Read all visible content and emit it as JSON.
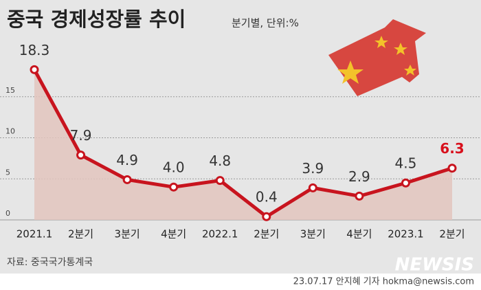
{
  "chart_data": {
    "type": "line",
    "title": "중국 경제성장률 추이",
    "subtitle": "분기별, 단위:%",
    "categories": [
      "2021.1",
      "2분기",
      "3분기",
      "4분기",
      "2022.1",
      "2분기",
      "3분기",
      "4분기",
      "2023.1",
      "2분기"
    ],
    "values": [
      18.3,
      7.9,
      4.9,
      4.0,
      4.8,
      0.4,
      3.9,
      2.9,
      4.5,
      6.3
    ],
    "value_labels": [
      "18.3",
      "7.9",
      "4.9",
      "4.0",
      "4.8",
      "0.4",
      "3.9",
      "2.9",
      "4.5",
      "6.3"
    ],
    "color": "#c8141e",
    "area_color": "#e2c4bd",
    "label_color": "#333333",
    "highlight_index": 9,
    "highlight_color": "#d8101c",
    "ylim": [
      0,
      20
    ],
    "yticks": [
      0,
      5,
      10,
      15
    ],
    "grid": true,
    "source": "자료: 중국국가통계국",
    "credit": "23.07.17 안지혜 기자 hokma@newsis.com",
    "watermark": "NEWSIS"
  }
}
